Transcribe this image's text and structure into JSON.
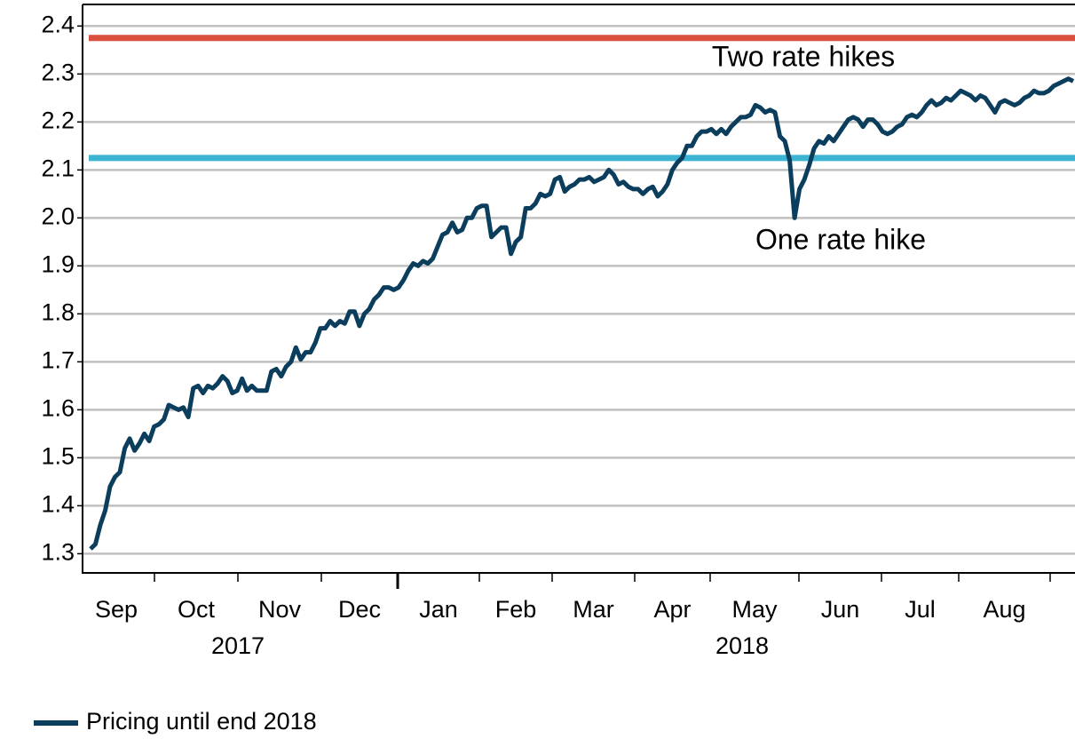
{
  "chart_data": {
    "type": "line",
    "series": [
      {
        "name": "Pricing until end 2018",
        "color": "#0b3d5c",
        "values": [
          1.31,
          1.32,
          1.36,
          1.39,
          1.44,
          1.46,
          1.47,
          1.52,
          1.54,
          1.515,
          1.53,
          1.55,
          1.535,
          1.565,
          1.57,
          1.58,
          1.61,
          1.605,
          1.6,
          1.605,
          1.585,
          1.645,
          1.65,
          1.635,
          1.65,
          1.645,
          1.655,
          1.67,
          1.66,
          1.635,
          1.64,
          1.665,
          1.64,
          1.65,
          1.64,
          1.64,
          1.64,
          1.68,
          1.685,
          1.67,
          1.69,
          1.7,
          1.73,
          1.705,
          1.72,
          1.72,
          1.74,
          1.77,
          1.77,
          1.785,
          1.775,
          1.785,
          1.78,
          1.805,
          1.805,
          1.775,
          1.8,
          1.81,
          1.83,
          1.84,
          1.855,
          1.855,
          1.85,
          1.855,
          1.87,
          1.89,
          1.905,
          1.9,
          1.91,
          1.905,
          1.915,
          1.94,
          1.965,
          1.97,
          1.99,
          1.97,
          1.975,
          2.0,
          2.0,
          2.02,
          2.025,
          2.025,
          1.96,
          1.97,
          1.98,
          1.98,
          1.925,
          1.95,
          1.96,
          2.02,
          2.02,
          2.03,
          2.05,
          2.045,
          2.05,
          2.08,
          2.085,
          2.055,
          2.065,
          2.07,
          2.08,
          2.08,
          2.085,
          2.075,
          2.08,
          2.085,
          2.1,
          2.09,
          2.07,
          2.075,
          2.065,
          2.06,
          2.06,
          2.05,
          2.06,
          2.065,
          2.045,
          2.055,
          2.07,
          2.1,
          2.115,
          2.125,
          2.15,
          2.15,
          2.17,
          2.18,
          2.18,
          2.185,
          2.175,
          2.185,
          2.175,
          2.19,
          2.2,
          2.21,
          2.21,
          2.215,
          2.235,
          2.23,
          2.22,
          2.225,
          2.22,
          2.17,
          2.16,
          2.12,
          2.0,
          2.06,
          2.08,
          2.11,
          2.145,
          2.16,
          2.155,
          2.17,
          2.16,
          2.175,
          2.19,
          2.205,
          2.21,
          2.205,
          2.19,
          2.205,
          2.205,
          2.195,
          2.18,
          2.175,
          2.18,
          2.19,
          2.195,
          2.21,
          2.215,
          2.21,
          2.22,
          2.235,
          2.245,
          2.235,
          2.24,
          2.25,
          2.245,
          2.255,
          2.265,
          2.26,
          2.255,
          2.245,
          2.255,
          2.25,
          2.235,
          2.22,
          2.24,
          2.245,
          2.24,
          2.235,
          2.24,
          2.25,
          2.255,
          2.265,
          2.26,
          2.26,
          2.265,
          2.275,
          2.28,
          2.285,
          2.29,
          2.285
        ]
      }
    ],
    "reference_lines": [
      {
        "label": "Two rate hikes",
        "value": 2.375,
        "color": "#d9503f"
      },
      {
        "label": "One rate hike",
        "value": 2.125,
        "color": "#3cb4d2"
      }
    ],
    "xtick_labels": [
      "Sep",
      "Oct",
      "Nov",
      "Dec",
      "Jan",
      "Feb",
      "Mar",
      "Apr",
      "May",
      "Jun",
      "Jul",
      "Aug"
    ],
    "year_labels": [
      "2017",
      "2018"
    ],
    "ylim": [
      1.26,
      2.445
    ],
    "yticks": [
      1.3,
      1.4,
      1.5,
      1.6,
      1.7,
      1.8,
      1.9,
      {
        "value": 2,
        "label": "2.0"
      },
      2.1,
      2.2,
      2.3,
      2.4
    ],
    "grid": true
  }
}
